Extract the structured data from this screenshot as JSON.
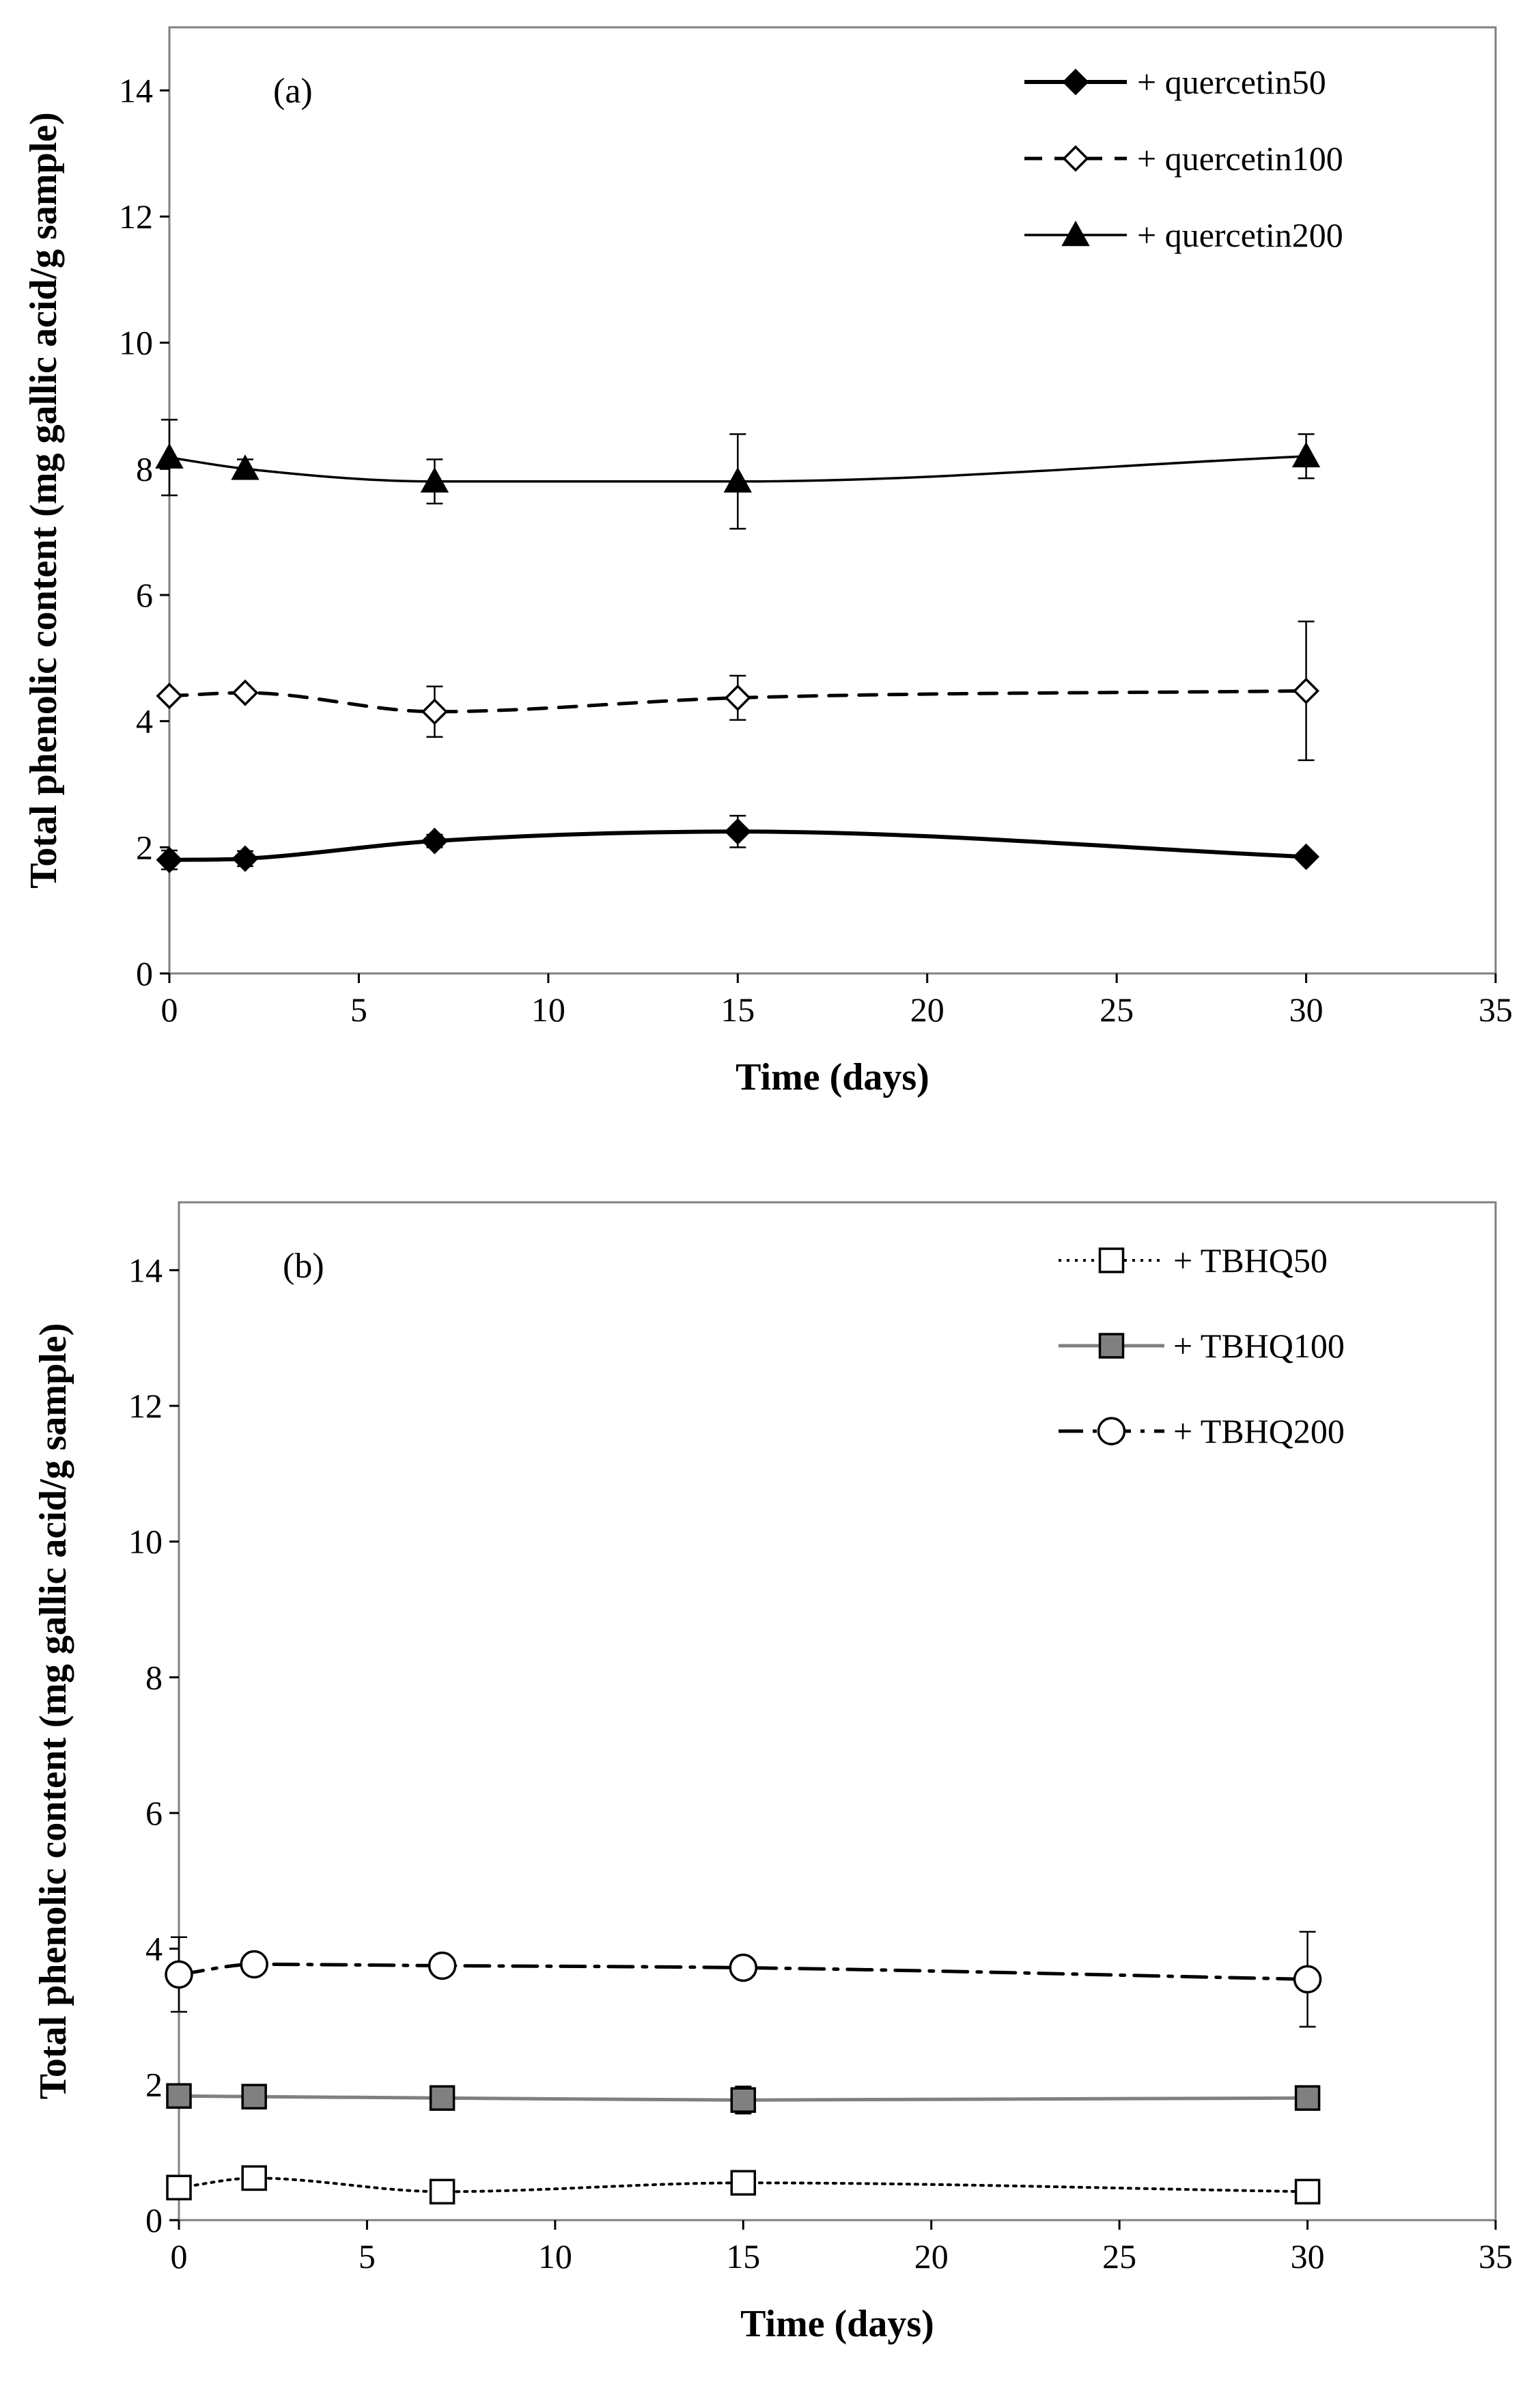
{
  "chart_data": [
    {
      "type": "line",
      "panel_label": "(a)",
      "xlabel": "Time (days)",
      "ylabel": "Total phenolic content (mg gallic acid/g sample)",
      "xlim": [
        0,
        35
      ],
      "ylim": [
        0,
        15
      ],
      "x_ticks": [
        "0",
        "5",
        "10",
        "15",
        "20",
        "25",
        "30",
        "35"
      ],
      "y_ticks": [
        "0",
        "2",
        "4",
        "6",
        "8",
        "10",
        "12",
        "14"
      ],
      "legend_position": "top-right",
      "series": [
        {
          "name": "+ quercetin50",
          "marker": "diamond-filled",
          "line_style": "solid-thick",
          "color": "#000000",
          "x": [
            0,
            2,
            7,
            15,
            30
          ],
          "y": [
            1.8,
            1.82,
            2.1,
            2.25,
            1.85
          ],
          "err": [
            0.15,
            0.12,
            0.1,
            0.25,
            0.05
          ]
        },
        {
          "name": "+ quercetin100",
          "marker": "diamond-open",
          "line_style": "dashed",
          "color": "#000000",
          "x": [
            0,
            2,
            7,
            15,
            30
          ],
          "y": [
            4.4,
            4.45,
            4.15,
            4.37,
            4.48
          ],
          "err": [
            0.05,
            0.05,
            0.4,
            0.35,
            1.1
          ]
        },
        {
          "name": "+  quercetin200",
          "marker": "triangle-filled",
          "line_style": "solid-thin",
          "color": "#000000",
          "x": [
            0,
            2,
            7,
            15,
            30
          ],
          "y": [
            8.18,
            8.0,
            7.8,
            7.8,
            8.2
          ],
          "err": [
            0.6,
            0.15,
            0.35,
            0.75,
            0.35
          ]
        }
      ]
    },
    {
      "type": "line",
      "panel_label": "(b)",
      "xlabel": "Time (days)",
      "ylabel": "Total phenolic content (mg gallic acid/g sample)",
      "xlim": [
        0,
        35
      ],
      "ylim": [
        0,
        15
      ],
      "x_ticks": [
        "0",
        "5",
        "10",
        "15",
        "20",
        "25",
        "30",
        "35"
      ],
      "y_ticks": [
        "0",
        "2",
        "4",
        "6",
        "8",
        "10",
        "12",
        "14"
      ],
      "legend_position": "top-right",
      "series": [
        {
          "name": "+ TBHQ50",
          "marker": "square-open",
          "line_style": "dotted",
          "color": "#000000",
          "x": [
            0,
            2,
            7,
            15,
            30
          ],
          "y": [
            0.48,
            0.62,
            0.42,
            0.55,
            0.42
          ],
          "err": [
            0.05,
            0.05,
            0.05,
            0.1,
            0.05
          ]
        },
        {
          "name": "+ TBHQ100",
          "marker": "square-gray",
          "line_style": "solid-gray",
          "color": "#808080",
          "x": [
            0,
            2,
            7,
            15,
            30
          ],
          "y": [
            1.83,
            1.82,
            1.8,
            1.77,
            1.8
          ],
          "err": [
            0.05,
            0.05,
            0.05,
            0.2,
            0.05
          ]
        },
        {
          "name": "+ TBHQ200",
          "marker": "circle-open",
          "line_style": "dash-dot",
          "color": "#000000",
          "x": [
            0,
            2,
            7,
            15,
            30
          ],
          "y": [
            3.62,
            3.77,
            3.75,
            3.72,
            3.55
          ],
          "err": [
            0.55,
            0.05,
            0.05,
            0.05,
            0.7
          ]
        }
      ]
    }
  ]
}
